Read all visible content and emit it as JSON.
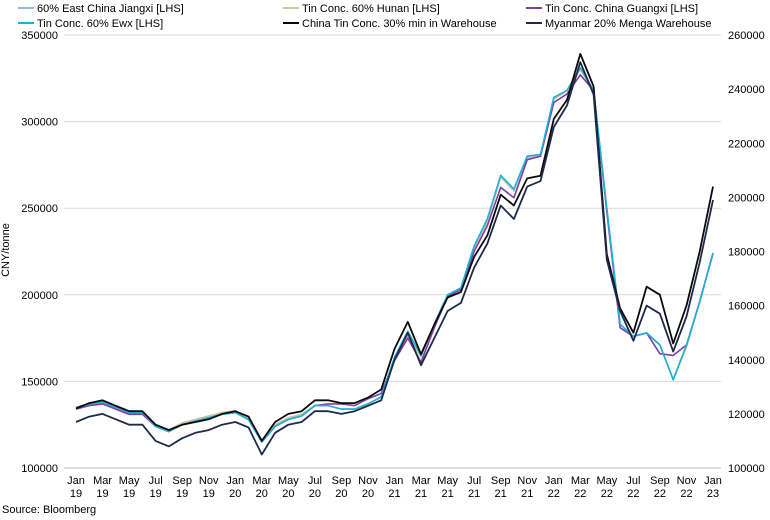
{
  "chart_data": {
    "type": "line",
    "ylabel": "CNY/tonne",
    "source": "Source: Bloomberg",
    "ylim_left": [
      100000,
      350000
    ],
    "ylim_right": [
      100000,
      260000
    ],
    "yticks_left": [
      "100000",
      "150000",
      "200000",
      "250000",
      "300000",
      "350000"
    ],
    "yticks_right": [
      "100000",
      "120000",
      "140000",
      "160000",
      "180000",
      "200000",
      "220000",
      "240000",
      "260000"
    ],
    "grid": "horizontal",
    "legend_position": "top",
    "x_labels": [
      [
        "Jan",
        "19"
      ],
      [
        "Mar",
        "19"
      ],
      [
        "May",
        "19"
      ],
      [
        "Jul",
        "19"
      ],
      [
        "Sep",
        "19"
      ],
      [
        "Nov",
        "19"
      ],
      [
        "Jan",
        "20"
      ],
      [
        "Mar",
        "20"
      ],
      [
        "May",
        "20"
      ],
      [
        "Jul",
        "20"
      ],
      [
        "Sep",
        "20"
      ],
      [
        "Nov",
        "20"
      ],
      [
        "Jan",
        "21"
      ],
      [
        "Mar",
        "21"
      ],
      [
        "May",
        "21"
      ],
      [
        "Jul",
        "21"
      ],
      [
        "Sep",
        "21"
      ],
      [
        "Nov",
        "21"
      ],
      [
        "Jan",
        "22"
      ],
      [
        "Mar",
        "22"
      ],
      [
        "May",
        "22"
      ],
      [
        "Jul",
        "22"
      ],
      [
        "Sep",
        "22"
      ],
      [
        "Nov",
        "22"
      ],
      [
        "Jan",
        "23"
      ]
    ],
    "series": [
      {
        "name": "60% East China Jiangxi [LHS]",
        "color": "#8fb8e8",
        "axis": "left",
        "values": [
          135000,
          137000,
          138000,
          135000,
          132000,
          132000,
          125000,
          122000,
          126000,
          128000,
          130000,
          132000,
          133000,
          129000,
          116000,
          125000,
          129000,
          131000,
          136000,
          136000,
          134000,
          134000,
          137000,
          141000,
          163000,
          177000,
          164000,
          183000,
          200000,
          204000,
          228000,
          243000,
          268000,
          260000,
          280000,
          281000,
          313000,
          318000,
          331000,
          318000,
          250000,
          183000,
          176000,
          178000,
          171000,
          151000,
          170000,
          196000,
          224000
        ]
      },
      {
        "name": "Tin Conc. 60% Hunan [LHS]",
        "color": "#cfc6a0",
        "axis": "left",
        "values": [
          135000,
          137000,
          138000,
          135000,
          132000,
          132000,
          125000,
          122000,
          126000,
          128000,
          130000,
          132000,
          133000,
          129000,
          116000,
          125000,
          129000,
          131000,
          136000,
          136000,
          134000,
          134000,
          137000,
          141000,
          163000,
          176000,
          164000,
          183000,
          200000,
          204000,
          227000,
          242000,
          268000,
          260000,
          279000,
          281000,
          313000,
          318000,
          330000,
          318000,
          250000,
          183000,
          176000,
          178000,
          171000,
          151000,
          170000,
          196000,
          224000
        ]
      },
      {
        "name": "Tin Conc. China Guangxi [LHS]",
        "color": "#7a3fa8",
        "axis": "left",
        "values": [
          134000,
          136000,
          137000,
          134000,
          131000,
          131000,
          124000,
          121000,
          125000,
          127000,
          129000,
          131000,
          132000,
          128000,
          115000,
          124000,
          128000,
          130000,
          136000,
          137000,
          137000,
          136000,
          140000,
          143000,
          162000,
          175000,
          161000,
          181000,
          199000,
          203000,
          225000,
          240000,
          262000,
          256000,
          278000,
          280000,
          311000,
          316000,
          327000,
          318000,
          248000,
          181000,
          176000,
          178000,
          166000,
          165000,
          171000,
          196000,
          224000
        ]
      },
      {
        "name": "Tin Conc. 60% Ewx [LHS]",
        "color": "#1fb0d8",
        "axis": "left",
        "values": [
          135000,
          137000,
          138000,
          135000,
          132000,
          132000,
          124000,
          121000,
          125000,
          127000,
          129000,
          131000,
          132000,
          128000,
          115000,
          124000,
          128000,
          130000,
          136000,
          136000,
          134000,
          134000,
          137000,
          141000,
          164000,
          179000,
          165000,
          183000,
          200000,
          204000,
          228000,
          244000,
          269000,
          261000,
          280000,
          281000,
          314000,
          318000,
          331000,
          318000,
          250000,
          183000,
          176000,
          178000,
          171000,
          151000,
          171000,
          196000,
          224000
        ]
      },
      {
        "name": "China Tin Conc. 30% min in Warehouse",
        "color": "#0a0a0a",
        "axis": "right",
        "values": [
          122000,
          124000,
          125000,
          123000,
          121000,
          121000,
          116000,
          114000,
          116000,
          117000,
          118000,
          120000,
          121000,
          119000,
          110000,
          117000,
          120000,
          121000,
          125000,
          125000,
          124000,
          124000,
          126000,
          129000,
          144000,
          154000,
          142000,
          153000,
          163000,
          165000,
          178000,
          186000,
          201000,
          197000,
          207000,
          208000,
          229000,
          236000,
          253000,
          241000,
          179000,
          159000,
          150000,
          167000,
          164000,
          146000,
          160000,
          180000,
          204000
        ]
      },
      {
        "name": "Myanmar 20% Menga Warehouse",
        "color": "#1e2a4a",
        "axis": "right",
        "values": [
          117000,
          119000,
          120000,
          118000,
          116000,
          116000,
          110000,
          108000,
          111000,
          113000,
          114000,
          116000,
          117000,
          115000,
          105000,
          113000,
          116000,
          117000,
          121000,
          121000,
          120000,
          121000,
          123000,
          125000,
          140000,
          150000,
          138000,
          148000,
          158000,
          161000,
          174000,
          183000,
          197000,
          192000,
          204000,
          206000,
          226000,
          234000,
          250000,
          238000,
          177000,
          158000,
          147000,
          160000,
          157000,
          143000,
          156000,
          176000,
          199000
        ]
      }
    ]
  }
}
